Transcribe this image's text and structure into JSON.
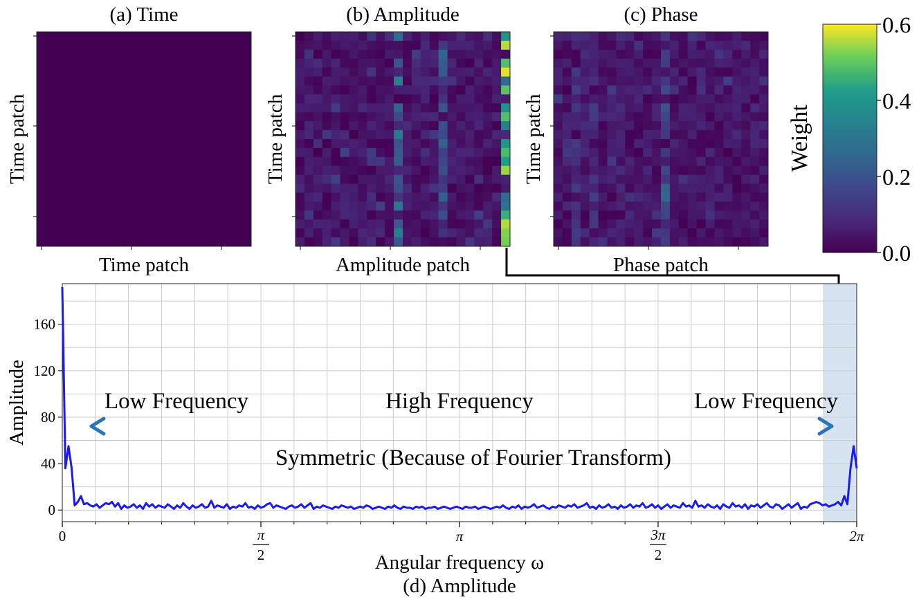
{
  "colors": {
    "viridis_low": "#440154",
    "viridis_high": "#fde725",
    "amplitude_line": "#1a1aee",
    "highlight_band": "#d6e4f1",
    "arrow_side": "#2a74b8",
    "arrow_center": "#e8232a"
  },
  "heatmaps": [
    {
      "title": "(a) Time",
      "xlabel": "Time patch",
      "ylabel": "Time patch",
      "kind": "time"
    },
    {
      "title": "(b) Amplitude",
      "xlabel": "Amplitude patch",
      "ylabel": "Time patch",
      "kind": "amplitude"
    },
    {
      "title": "(c) Phase",
      "xlabel": "Phase patch",
      "ylabel": "Time patch",
      "kind": "phase"
    }
  ],
  "colorbar": {
    "label": "Weight",
    "ticks": [
      "0.0",
      "0.2",
      "0.4",
      "0.6"
    ],
    "range": [
      0,
      0.6
    ],
    "colormap": "viridis"
  },
  "chart_data": {
    "type": "line",
    "title": "(d) Amplitude",
    "xlabel": "Angular frequency ω",
    "ylabel": "Amplitude",
    "xlim": [
      0,
      6.2832
    ],
    "ylim": [
      -10,
      195
    ],
    "grid": true,
    "yticks": [
      "0",
      "40",
      "80",
      "120",
      "160"
    ],
    "xtick_labels": [
      {
        "value": 0,
        "num": "0",
        "den": ""
      },
      {
        "value": 1.5708,
        "num": "π",
        "den": "2"
      },
      {
        "value": 3.1416,
        "num": "π",
        "den": ""
      },
      {
        "value": 4.7124,
        "num": "3π",
        "den": "2"
      },
      {
        "value": 6.2832,
        "num": "2π",
        "den": ""
      }
    ],
    "highlight_band": [
      6.02,
      6.2832
    ],
    "annotations": {
      "low_left": "Low Frequency",
      "high": "High Frequency",
      "low_right": "Low Frequency",
      "symmetric": "Symmetric (Because of Fourier Transform)"
    },
    "series": [
      {
        "x_range": [
          0,
          6.2832
        ],
        "values": [
          192,
          36,
          55,
          36,
          4,
          7,
          12,
          5,
          6,
          4,
          3,
          5,
          2,
          4,
          6,
          5,
          7,
          3,
          6,
          1,
          4,
          2,
          3,
          5,
          2,
          4,
          1,
          6,
          3,
          5,
          2,
          4,
          3,
          2,
          5,
          3,
          1,
          4,
          2,
          6,
          3,
          1,
          4,
          2,
          3,
          5,
          2,
          3,
          8,
          2,
          4,
          3,
          2,
          5,
          1,
          3,
          2,
          4,
          3,
          6,
          2,
          3,
          1,
          4,
          2,
          3,
          5,
          6,
          2,
          4,
          3,
          2,
          1,
          3,
          4,
          2,
          3,
          5,
          2,
          4,
          6,
          1,
          3,
          2,
          4,
          3,
          2,
          1,
          3,
          2,
          4,
          3,
          2,
          3,
          1,
          2,
          3,
          2,
          4,
          3,
          1,
          2,
          3,
          2,
          1,
          3,
          2,
          4,
          2,
          1,
          3,
          2,
          2,
          1,
          3,
          2,
          3,
          1,
          2,
          2,
          3,
          1,
          2,
          3,
          2,
          1,
          2,
          3,
          2,
          1,
          3,
          2,
          2,
          3,
          1,
          2,
          3,
          2,
          1,
          2,
          3,
          2,
          4,
          2,
          1,
          3,
          2,
          4,
          1,
          3,
          2,
          3,
          5,
          2,
          3,
          4,
          2,
          1,
          3,
          2,
          4,
          3,
          2,
          4,
          3,
          5,
          2,
          3,
          4,
          6,
          2,
          3,
          1,
          4,
          2,
          3,
          5,
          2,
          3,
          1,
          4,
          2,
          3,
          5,
          2,
          4,
          3,
          6,
          2,
          3,
          5,
          2,
          4,
          1,
          3,
          5,
          2,
          4,
          3,
          2,
          6,
          3,
          4,
          2,
          8,
          3,
          4,
          2,
          5,
          3,
          2,
          4,
          1,
          5,
          3,
          2,
          6,
          3,
          4,
          2,
          5,
          1,
          4,
          3,
          5,
          2,
          4,
          6,
          3,
          2,
          5,
          4,
          1,
          3,
          5,
          2,
          4,
          6,
          1,
          3,
          2,
          5,
          6,
          7,
          6,
          4,
          5,
          3,
          4,
          5,
          7,
          4,
          12,
          5,
          36,
          55,
          36
        ]
      }
    ]
  }
}
